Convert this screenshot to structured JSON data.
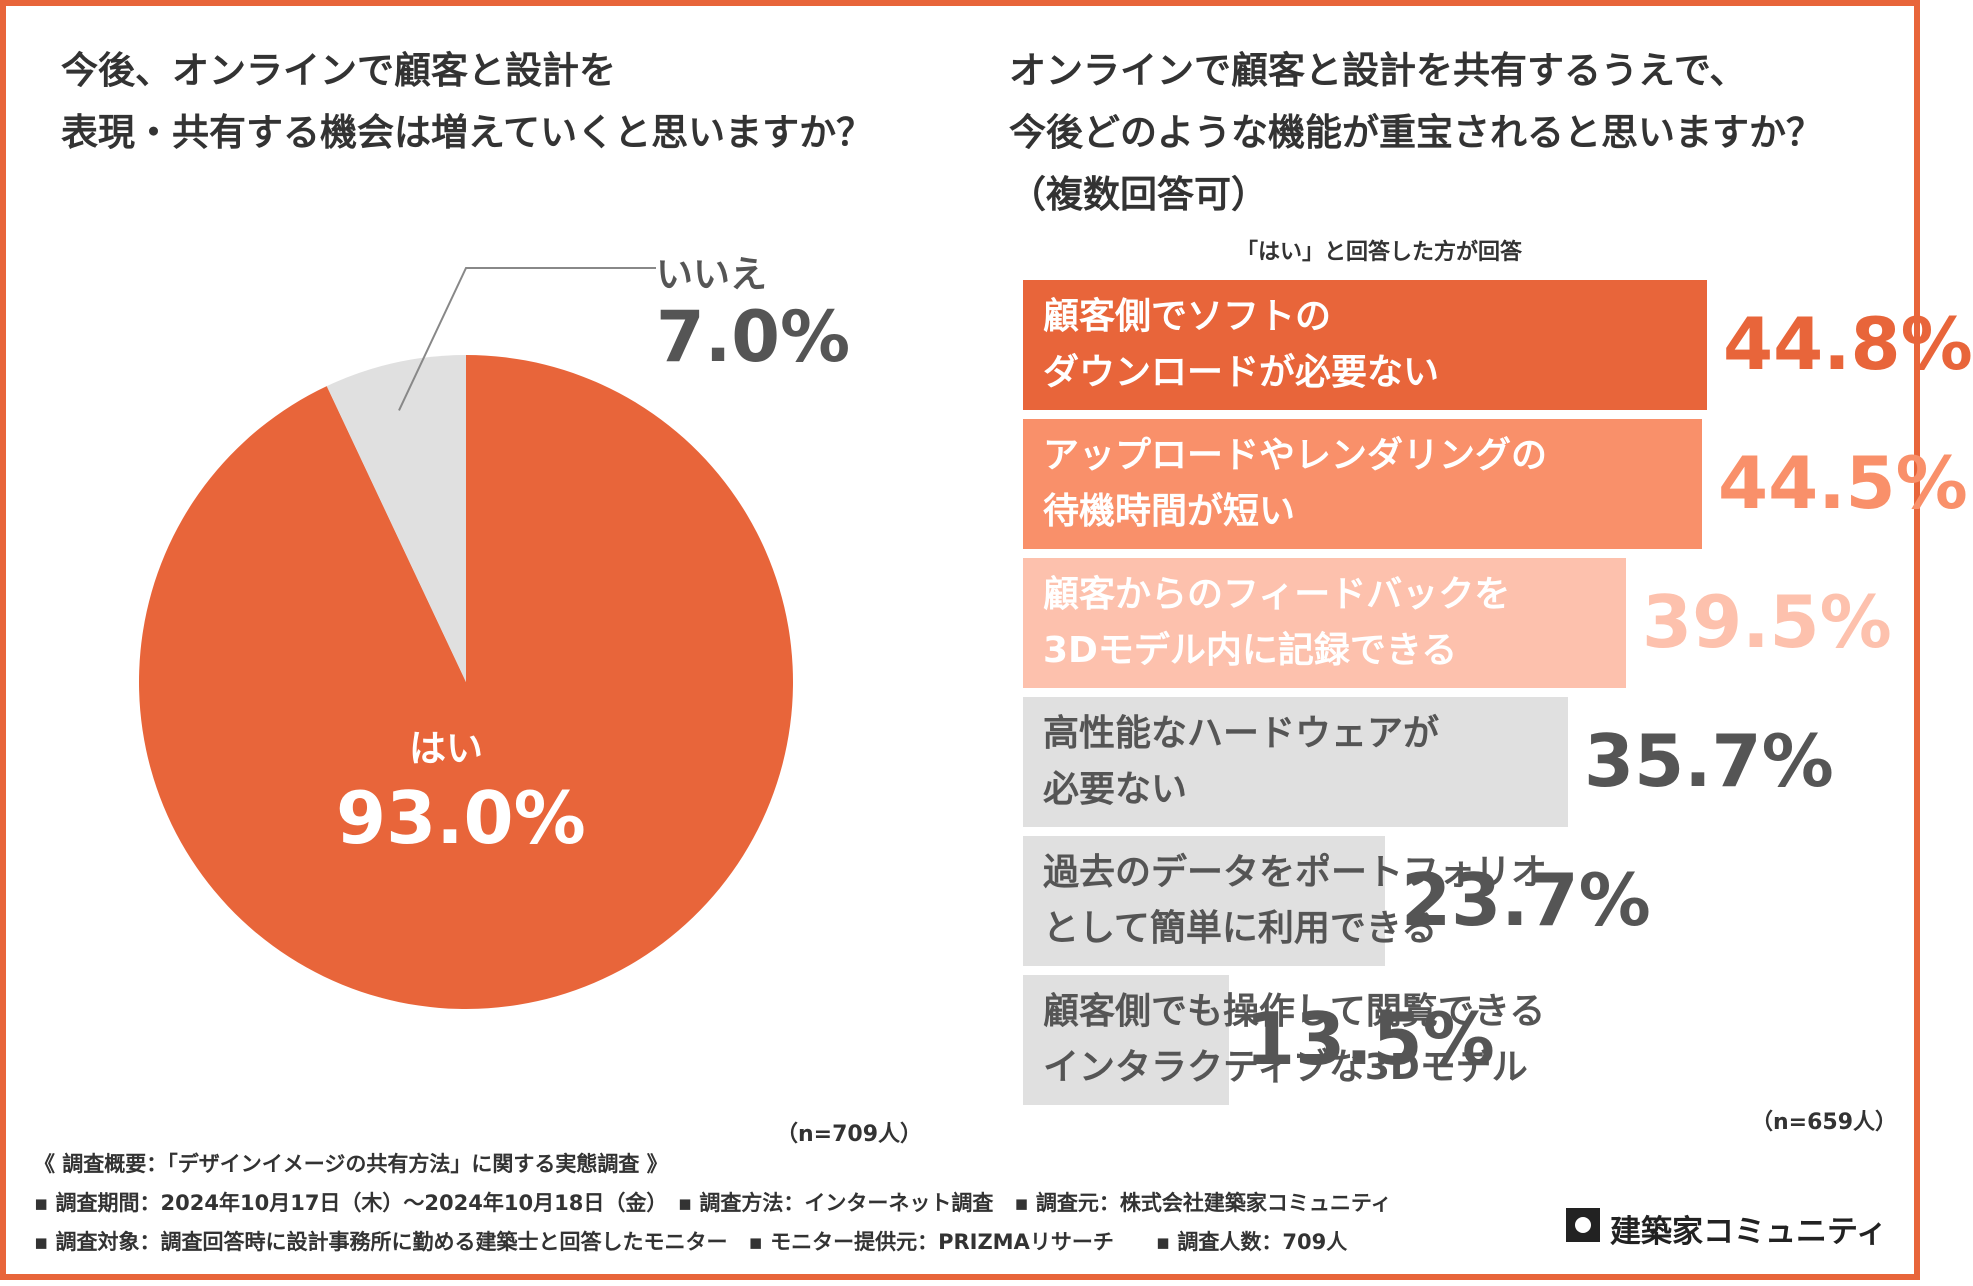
{
  "left_title": [
    "今後、オンラインで顧客と設計を",
    "表現・共有する機会は増えていくと思いますか？"
  ],
  "right_title": [
    "オンラインで顧客と設計を共有するうえで、",
    "今後どのような機能が重宝されると思いますか？",
    "（複数回答可）"
  ],
  "right_subtitle": "「はい」と回答した方が回答",
  "left_n": "（n=709人）",
  "right_n": "（n=659人）",
  "chart_data": [
    {
      "type": "pie",
      "title": "今後、オンラインで顧客と設計を表現・共有する機会は増えていくと思いますか？",
      "categories": [
        "はい",
        "いいえ"
      ],
      "values": [
        93.0,
        7.0
      ],
      "labels": [
        "93.0%",
        "7.0%"
      ],
      "colors": [
        "#e8653a",
        "#e0e0e0"
      ],
      "n": "（n=709人）"
    },
    {
      "type": "bar",
      "title": "オンラインで顧客と設計を共有するうえで、今後どのような機能が重宝されると思いますか？（複数回答可）",
      "categories": [
        [
          "顧客側でソフトの",
          "ダウンロードが必要ない"
        ],
        [
          "アップロードやレンダリングの",
          "待機時間が短い"
        ],
        [
          "顧客からのフィードバックを",
          "3Dモデル内に記録できる"
        ],
        [
          "高性能なハードウェアが",
          "必要ない"
        ],
        [
          "過去のデータをポートフォリオ",
          "として簡単に利用できる"
        ],
        [
          "顧客側でも操作して閲覧できる",
          "インタラクティブな3Dモデル"
        ]
      ],
      "values": [
        44.8,
        44.5,
        39.5,
        35.7,
        23.7,
        13.5
      ],
      "labels": [
        "44.8%",
        "44.5%",
        "39.5%",
        "35.7%",
        "23.7%",
        "13.5%"
      ],
      "bar_colors": [
        "#e8653a",
        "#f9906a",
        "#fdc1ad",
        "#e0e0e0",
        "#e0e0e0",
        "#e0e0e0"
      ],
      "label_colors": [
        "#ffffff",
        "#ffffff",
        "#ffffff",
        "#555555",
        "#555555",
        "#555555"
      ],
      "value_colors": [
        "#e8653a",
        "#f9906a",
        "#fdc1ad",
        "#555555",
        "#555555",
        "#555555"
      ],
      "xlim": [
        0,
        44.8
      ],
      "n": "（n=659人）"
    }
  ],
  "footer": {
    "survey_title": "《 調査概要：「デザインイメージの共有方法」に関する実態調査 》",
    "line1": "▪ 調査期間：2024年10月17日（木）～2024年10月18日（金）　▪ 調査方法：インターネット調査　▪ 調査元：株式会社建築家コミュニティ",
    "line2": "▪ 調査対象：調査回答時に設計事務所に勤める建築士と回答したモニター　▪ モニター提供元：PRIZMAリサーチ　　▪ 調査人数：709人"
  },
  "logo_text": "建築家コミュニティ"
}
